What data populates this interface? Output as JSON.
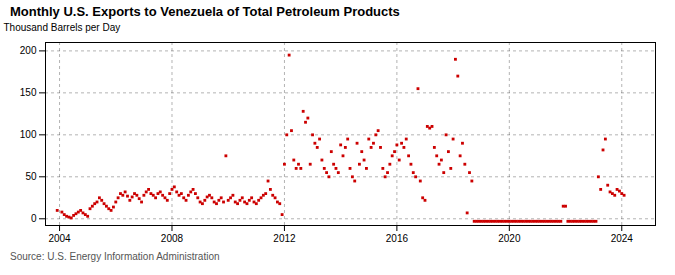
{
  "chart_data": {
    "type": "scatter",
    "title": "Monthly U.S. Exports to Venezuela of Total Petroleum Products",
    "ylabel": "Thousand Barrels per Day",
    "source": "Source: U.S. Energy Information Administration",
    "color": "#cc0000",
    "marker": "square",
    "grid": true,
    "xlim": [
      2003.5,
      2025.2
    ],
    "ylim": [
      -8,
      210
    ],
    "xticks": [
      2004,
      2008,
      2012,
      2016,
      2020,
      2024
    ],
    "yticks": [
      0,
      50,
      100,
      150,
      200
    ],
    "x": [
      2003.917,
      2004.083,
      2004.167,
      2004.25,
      2004.333,
      2004.417,
      2004.5,
      2004.583,
      2004.667,
      2004.75,
      2004.833,
      2004.917,
      2005.0,
      2005.083,
      2005.167,
      2005.25,
      2005.333,
      2005.417,
      2005.5,
      2005.583,
      2005.667,
      2005.75,
      2005.833,
      2005.917,
      2006.0,
      2006.083,
      2006.167,
      2006.25,
      2006.333,
      2006.417,
      2006.5,
      2006.583,
      2006.667,
      2006.75,
      2006.833,
      2006.917,
      2007.0,
      2007.083,
      2007.167,
      2007.25,
      2007.333,
      2007.417,
      2007.5,
      2007.583,
      2007.667,
      2007.75,
      2007.833,
      2007.917,
      2008.0,
      2008.083,
      2008.167,
      2008.25,
      2008.333,
      2008.417,
      2008.5,
      2008.583,
      2008.667,
      2008.75,
      2008.833,
      2008.917,
      2009.0,
      2009.083,
      2009.167,
      2009.25,
      2009.333,
      2009.417,
      2009.5,
      2009.583,
      2009.667,
      2009.75,
      2009.833,
      2009.917,
      2010.0,
      2010.083,
      2010.167,
      2010.25,
      2010.333,
      2010.417,
      2010.5,
      2010.583,
      2010.667,
      2010.75,
      2010.833,
      2010.917,
      2011.0,
      2011.083,
      2011.167,
      2011.25,
      2011.333,
      2011.417,
      2011.5,
      2011.583,
      2011.667,
      2011.75,
      2011.833,
      2011.917,
      2012.0,
      2012.083,
      2012.167,
      2012.25,
      2012.333,
      2012.417,
      2012.5,
      2012.583,
      2012.667,
      2012.75,
      2012.833,
      2012.917,
      2013.0,
      2013.083,
      2013.167,
      2013.25,
      2013.333,
      2013.417,
      2013.5,
      2013.583,
      2013.667,
      2013.75,
      2013.833,
      2013.917,
      2014.0,
      2014.083,
      2014.167,
      2014.25,
      2014.333,
      2014.417,
      2014.5,
      2014.583,
      2014.667,
      2014.75,
      2014.833,
      2014.917,
      2015.0,
      2015.083,
      2015.167,
      2015.25,
      2015.333,
      2015.417,
      2015.5,
      2015.583,
      2015.667,
      2015.75,
      2015.833,
      2015.917,
      2016.0,
      2016.083,
      2016.167,
      2016.25,
      2016.333,
      2016.417,
      2016.5,
      2016.583,
      2016.667,
      2016.75,
      2016.833,
      2016.917,
      2017.0,
      2017.083,
      2017.167,
      2017.25,
      2017.333,
      2017.417,
      2017.5,
      2017.583,
      2017.667,
      2017.75,
      2017.833,
      2017.917,
      2018.0,
      2018.083,
      2018.167,
      2018.25,
      2018.333,
      2018.417,
      2018.5,
      2018.583,
      2018.667,
      2018.75,
      2018.833,
      2018.917,
      2019.0,
      2019.083,
      2019.167,
      2019.25,
      2019.333,
      2019.417,
      2019.5,
      2019.583,
      2019.667,
      2019.75,
      2019.833,
      2019.917,
      2020.0,
      2020.083,
      2020.167,
      2020.25,
      2020.333,
      2020.417,
      2020.5,
      2020.583,
      2020.667,
      2020.75,
      2020.833,
      2020.917,
      2021.0,
      2021.083,
      2021.167,
      2021.25,
      2021.333,
      2021.417,
      2021.5,
      2021.583,
      2021.667,
      2021.75,
      2021.833,
      2021.917,
      2022.0,
      2022.083,
      2022.167,
      2022.25,
      2022.333,
      2022.417,
      2022.5,
      2022.583,
      2022.667,
      2022.75,
      2022.833,
      2022.917,
      2023.0,
      2023.083,
      2023.167,
      2023.25,
      2023.333,
      2023.417,
      2023.5,
      2023.583,
      2023.667,
      2023.75,
      2023.833,
      2023.917,
      2024.0,
      2024.083
    ],
    "values": [
      10,
      8,
      5,
      3,
      2,
      1,
      4,
      6,
      8,
      10,
      7,
      5,
      3,
      12,
      15,
      18,
      20,
      25,
      22,
      18,
      15,
      12,
      10,
      14,
      20,
      25,
      30,
      28,
      32,
      27,
      22,
      26,
      30,
      28,
      24,
      20,
      28,
      32,
      35,
      30,
      28,
      25,
      30,
      32,
      28,
      25,
      22,
      30,
      35,
      38,
      32,
      28,
      30,
      25,
      22,
      28,
      32,
      35,
      30,
      25,
      20,
      18,
      22,
      26,
      28,
      25,
      20,
      18,
      22,
      25,
      20,
      75,
      22,
      25,
      28,
      20,
      18,
      22,
      25,
      20,
      18,
      22,
      25,
      20,
      18,
      22,
      25,
      28,
      30,
      45,
      35,
      28,
      25,
      20,
      18,
      5,
      65,
      100,
      195,
      105,
      70,
      60,
      65,
      60,
      128,
      115,
      120,
      65,
      100,
      90,
      85,
      95,
      70,
      60,
      55,
      50,
      80,
      65,
      60,
      55,
      88,
      75,
      85,
      95,
      60,
      50,
      45,
      90,
      65,
      80,
      70,
      60,
      95,
      85,
      90,
      100,
      105,
      85,
      60,
      50,
      55,
      65,
      75,
      80,
      88,
      70,
      90,
      85,
      95,
      75,
      65,
      55,
      50,
      155,
      45,
      25,
      22,
      110,
      108,
      110,
      85,
      75,
      65,
      70,
      55,
      100,
      80,
      60,
      95,
      190,
      170,
      75,
      90,
      65,
      7,
      55,
      45,
      -3,
      -3,
      -3,
      -3,
      -3,
      -3,
      -3,
      -3,
      -3,
      -3,
      -3,
      -3,
      -3,
      -3,
      -3,
      -3,
      -3,
      -3,
      -3,
      -3,
      -3,
      -3,
      -3,
      -3,
      -3,
      -3,
      -3,
      -3,
      -3,
      -3,
      -3,
      -3,
      -3,
      -3,
      -3,
      -3,
      -3,
      -3,
      15,
      15,
      -3,
      -3,
      -3,
      -3,
      -3,
      -3,
      -3,
      -3,
      -3,
      -3,
      -3,
      -3,
      -3,
      50,
      35,
      82,
      95,
      40,
      32,
      30,
      28,
      35,
      33,
      30,
      28
    ]
  }
}
